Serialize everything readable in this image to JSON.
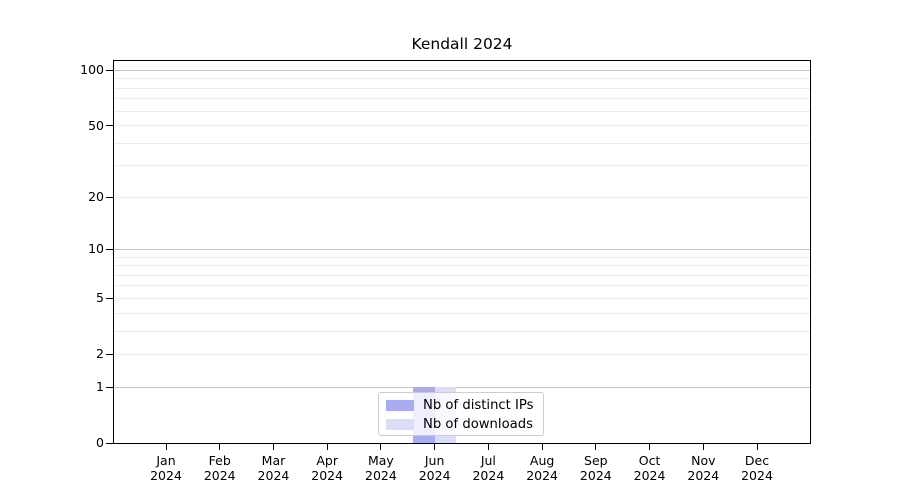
{
  "chart_data": {
    "type": "bar",
    "title": "Kendall 2024",
    "categories": [
      "Jan 2024",
      "Feb 2024",
      "Mar 2024",
      "Apr 2024",
      "May 2024",
      "Jun 2024",
      "Jul 2024",
      "Aug 2024",
      "Sep 2024",
      "Oct 2024",
      "Nov 2024",
      "Dec 2024"
    ],
    "series": [
      {
        "name": "Nb of distinct IPs",
        "color": "#a9abf2",
        "values": [
          0,
          0,
          0,
          0,
          0,
          1,
          0,
          0,
          0,
          0,
          0,
          0
        ]
      },
      {
        "name": "Nb of downloads",
        "color": "#dbdcf7",
        "values": [
          0,
          0,
          0,
          0,
          0,
          1,
          0,
          0,
          0,
          0,
          0,
          0
        ]
      }
    ],
    "y_scale": "log10(1+v)",
    "ylim": [
      0,
      113.8
    ],
    "y_tick_values": [
      0,
      1,
      2,
      5,
      10,
      20,
      50,
      100
    ],
    "y_major_gridlines": [
      1,
      10,
      100
    ],
    "y_minor_gridlines": [
      2,
      3,
      4,
      5,
      6,
      7,
      8,
      9,
      20,
      30,
      40,
      50,
      60,
      70,
      80,
      90
    ],
    "legend_position": "lower center",
    "grid": "on"
  },
  "colors": {
    "major_grid": "#c7c7c7",
    "minor_grid": "#ececec",
    "spine": "#000000",
    "background": "#ffffff",
    "bar_distinct_ips": "#a9abf2",
    "bar_downloads": "#dbdcf7"
  }
}
